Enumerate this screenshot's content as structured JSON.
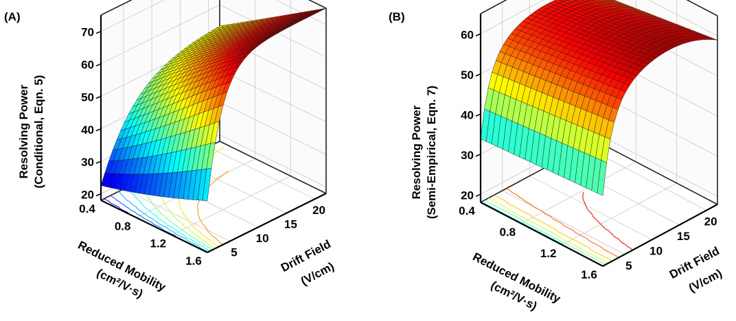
{
  "chart_data": [
    {
      "type": "surface",
      "panel_label": "(A)",
      "zlabel_line1": "Resolving Power",
      "zlabel_line2": "(Conditional, Eqn. 5)",
      "xlabel_line1": "Reduced Mobility",
      "xlabel_line2": "(cm²/V·s)",
      "ylabel_line1": "Drift Field",
      "ylabel_line2": "(V/cm)",
      "x_ticks": [
        "0.4",
        "0.8",
        "1.2",
        "1.6"
      ],
      "y_ticks": [
        "5",
        "10",
        "15",
        "20"
      ],
      "z_ticks": [
        "20",
        "30",
        "40",
        "50",
        "60",
        "70"
      ],
      "xlim": [
        0.4,
        1.6
      ],
      "ylim": [
        1,
        22
      ],
      "zlim": [
        18,
        75
      ],
      "surface_max": 75,
      "surface_min": 18,
      "colormap": "jet",
      "contour_projection": true
    },
    {
      "type": "surface",
      "panel_label": "(B)",
      "zlabel_line1": "Resolving Power",
      "zlabel_line2": "(Semi-Empirical, Eqn. 7)",
      "xlabel_line1": "Reduced Mobility",
      "xlabel_line2": "(cm²/V·s)",
      "ylabel_line1": "Drift Field",
      "ylabel_line2": "(V/cm)",
      "x_ticks": [
        "0.4",
        "0.8",
        "1.2",
        "1.6"
      ],
      "y_ticks": [
        "5",
        "10",
        "15",
        "20"
      ],
      "z_ticks": [
        "20",
        "30",
        "40",
        "50",
        "60"
      ],
      "xlim": [
        0.4,
        1.6
      ],
      "ylim": [
        1,
        22
      ],
      "zlim": [
        18,
        65
      ],
      "surface_max": 63,
      "surface_min": 18,
      "colormap": "jet",
      "contour_projection": true
    }
  ]
}
